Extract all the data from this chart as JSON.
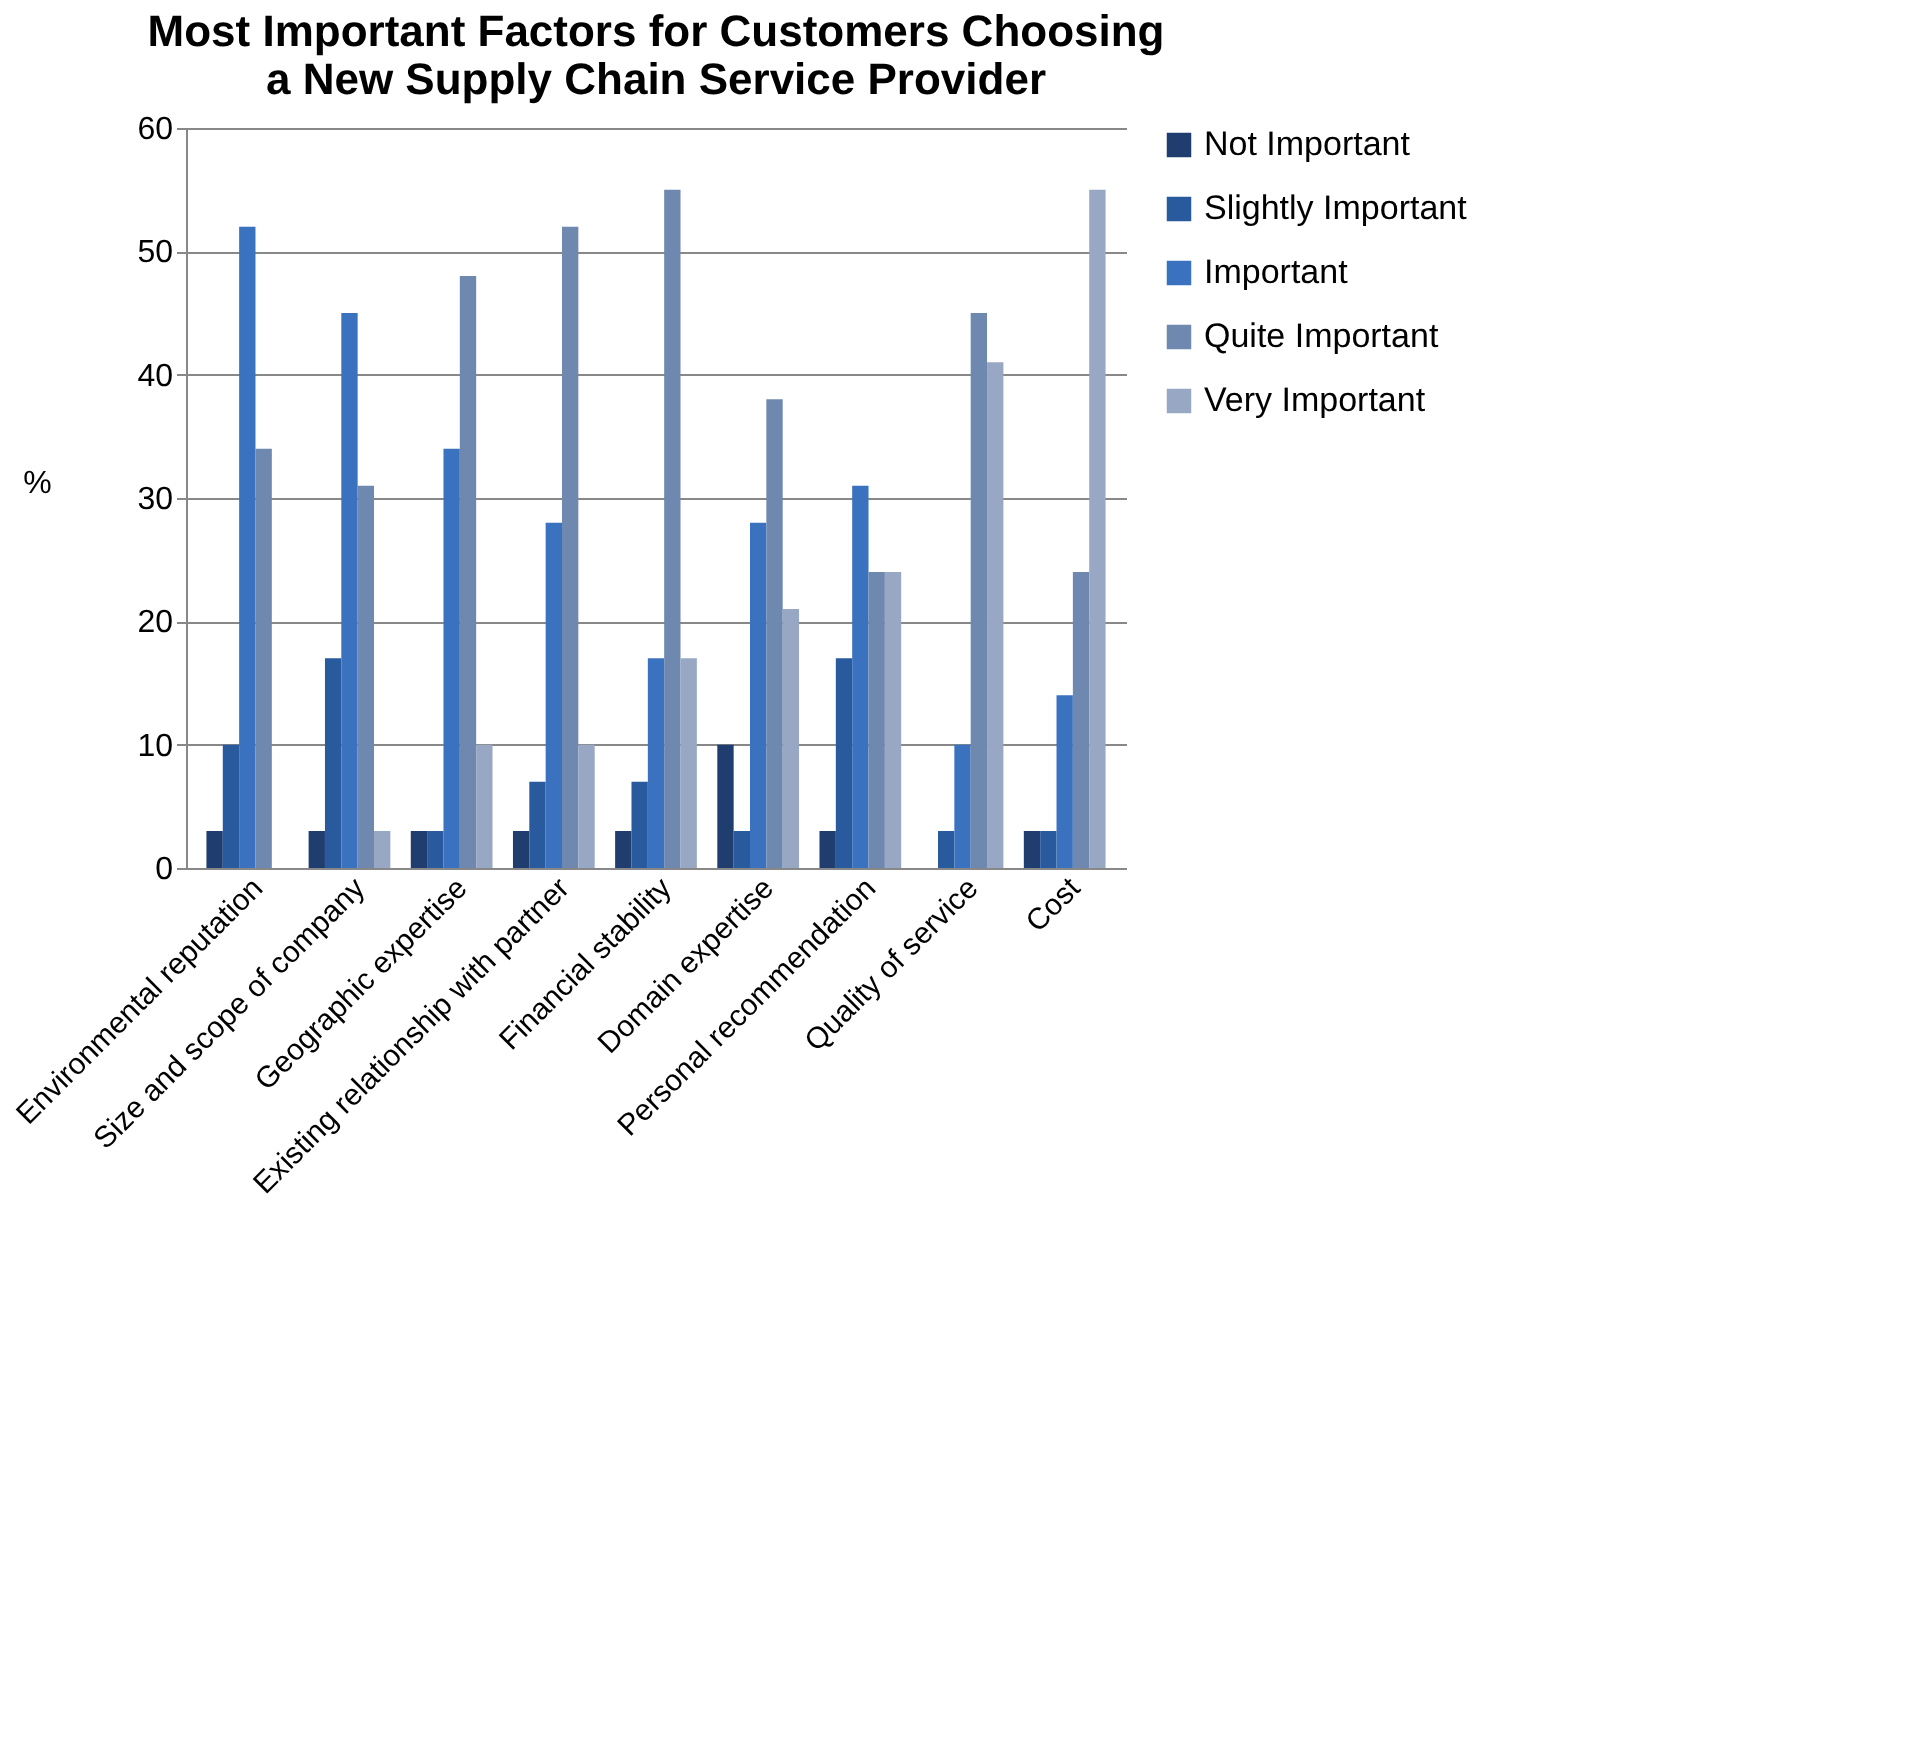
{
  "chart_data": {
    "type": "bar",
    "title": [
      "Most Important Factors for Customers Choosing",
      "a New Supply Chain Service Provider"
    ],
    "ylabel": "%",
    "categories": [
      "Environmental reputation",
      "Size and scope of company",
      "Geographic expertise",
      "Existing relationship with partner",
      "Financial stability",
      "Domain expertise",
      "Personal recommendation",
      "Quality of service",
      "Cost"
    ],
    "series": [
      {
        "name": "Not Important",
        "color": "#1f3d6e",
        "values": [
          3,
          3,
          3,
          3,
          3,
          10,
          3,
          0,
          3
        ]
      },
      {
        "name": "Slightly Important",
        "color": "#2a5a9e",
        "values": [
          10,
          17,
          3,
          7,
          7,
          3,
          17,
          3,
          3
        ]
      },
      {
        "name": "Important",
        "color": "#3a72c0",
        "values": [
          52,
          45,
          34,
          28,
          17,
          28,
          31,
          10,
          14
        ]
      },
      {
        "name": "Quite Important",
        "color": "#6f88b0",
        "values": [
          34,
          31,
          48,
          52,
          55,
          38,
          24,
          45,
          24
        ]
      },
      {
        "name": "Very Important",
        "color": "#98a8c4",
        "values": [
          0,
          3,
          10,
          10,
          17,
          21,
          24,
          41,
          55
        ]
      }
    ],
    "ylim": [
      0,
      60
    ],
    "yticks": [
      0,
      10,
      20,
      30,
      40,
      50,
      60
    ],
    "grid": "y",
    "legend": "right"
  }
}
